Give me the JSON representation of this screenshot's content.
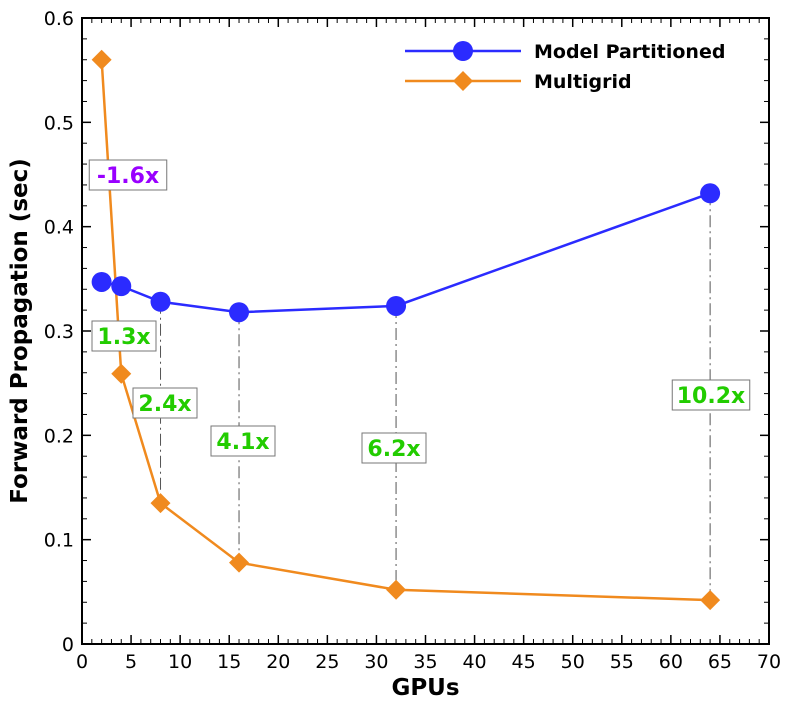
{
  "chart_data": {
    "type": "line",
    "title": "",
    "xlabel": "GPUs",
    "ylabel": "Forward Propagation (sec)",
    "xlim": [
      0,
      70
    ],
    "ylim": [
      0,
      0.6
    ],
    "xticks": [
      0,
      5,
      10,
      15,
      20,
      25,
      30,
      35,
      40,
      45,
      50,
      55,
      60,
      65,
      70
    ],
    "yticks": [
      0,
      0.1,
      0.2,
      0.3,
      0.4,
      0.5,
      0.6
    ],
    "ytick_labels": [
      "0",
      "0.1",
      "0.2",
      "0.3",
      "0.4",
      "0.5",
      "0.6"
    ],
    "grid": false,
    "legend_position": "top-right",
    "series": [
      {
        "name": "Model Partitioned",
        "color": "#2b2bff",
        "marker": "circle",
        "x": [
          2,
          4,
          8,
          16,
          32,
          64
        ],
        "y": [
          0.347,
          0.343,
          0.328,
          0.318,
          0.324,
          0.432
        ]
      },
      {
        "name": "Multigrid",
        "color": "#f08a1e",
        "marker": "diamond",
        "x": [
          2,
          4,
          8,
          16,
          32,
          64
        ],
        "y": [
          0.56,
          0.259,
          0.135,
          0.078,
          0.052,
          0.042
        ]
      }
    ],
    "annotations": [
      {
        "text": "-1.6x",
        "x": 4,
        "color": "#9900ff"
      },
      {
        "text": "1.3x",
        "x": 4,
        "color": "#22cc00"
      },
      {
        "text": "2.4x",
        "x": 8,
        "color": "#22cc00"
      },
      {
        "text": "4.1x",
        "x": 16,
        "color": "#22cc00"
      },
      {
        "text": "6.2x",
        "x": 32,
        "color": "#22cc00"
      },
      {
        "text": "10.2x",
        "x": 64,
        "color": "#22cc00"
      }
    ]
  }
}
